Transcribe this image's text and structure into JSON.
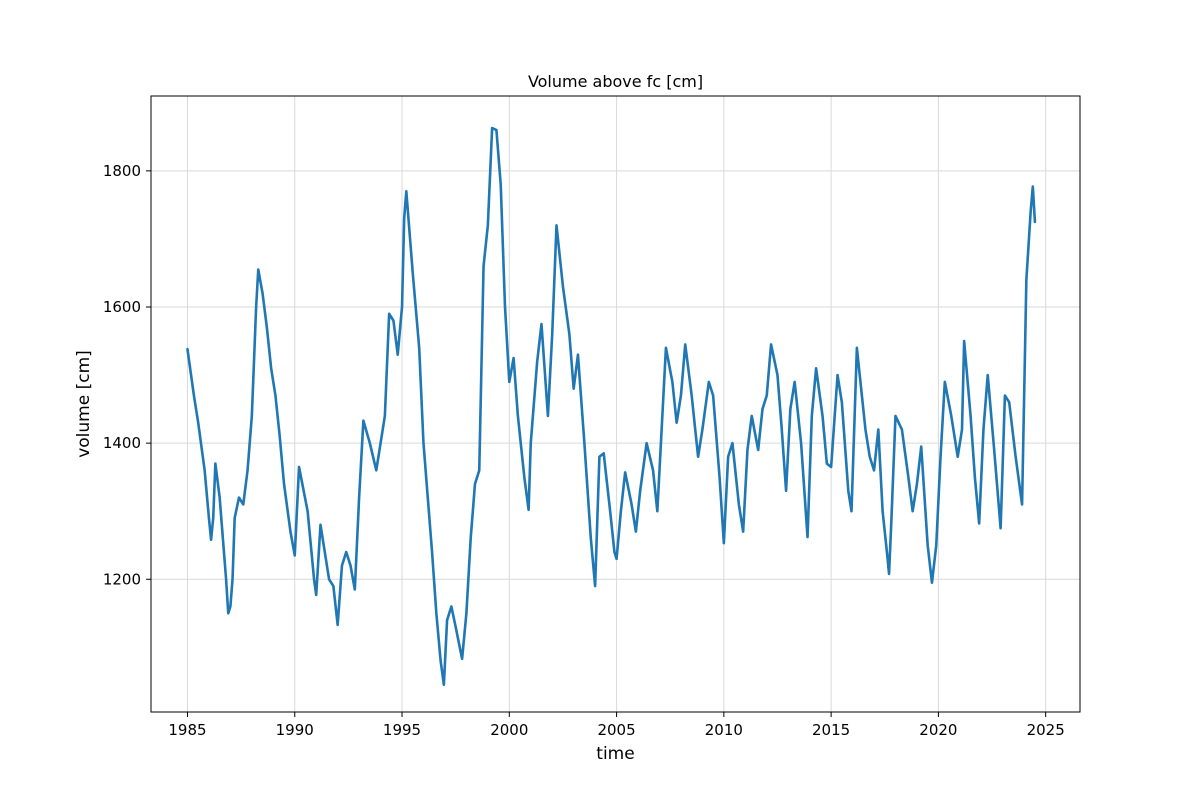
{
  "chart_data": {
    "type": "line",
    "title": "Volume above fc [cm]",
    "xlabel": "time",
    "ylabel": "volume [cm]",
    "xlim": [
      1983.3,
      2026.6
    ],
    "ylim": [
      1005,
      1910
    ],
    "x_ticks": [
      1985,
      1990,
      1995,
      2000,
      2005,
      2010,
      2015,
      2020,
      2025
    ],
    "y_ticks": [
      1200,
      1400,
      1600,
      1800
    ],
    "grid": true,
    "legend": "none",
    "colors": {
      "series": "#1f77b4",
      "grid": "#d9d9d9",
      "axes": "#000000"
    },
    "series": [
      {
        "name": "",
        "points": [
          [
            1985.0,
            1538
          ],
          [
            1985.3,
            1470
          ],
          [
            1985.5,
            1430
          ],
          [
            1985.8,
            1360
          ],
          [
            1986.0,
            1290
          ],
          [
            1986.1,
            1258
          ],
          [
            1986.2,
            1290
          ],
          [
            1986.3,
            1370
          ],
          [
            1986.5,
            1320
          ],
          [
            1986.8,
            1200
          ],
          [
            1986.9,
            1150
          ],
          [
            1987.0,
            1160
          ],
          [
            1987.1,
            1200
          ],
          [
            1987.2,
            1290
          ],
          [
            1987.4,
            1320
          ],
          [
            1987.6,
            1310
          ],
          [
            1987.8,
            1360
          ],
          [
            1988.0,
            1440
          ],
          [
            1988.2,
            1600
          ],
          [
            1988.3,
            1655
          ],
          [
            1988.5,
            1620
          ],
          [
            1988.7,
            1570
          ],
          [
            1988.9,
            1510
          ],
          [
            1989.1,
            1470
          ],
          [
            1989.3,
            1410
          ],
          [
            1989.5,
            1340
          ],
          [
            1989.8,
            1270
          ],
          [
            1990.0,
            1235
          ],
          [
            1990.2,
            1365
          ],
          [
            1990.6,
            1300
          ],
          [
            1990.9,
            1200
          ],
          [
            1991.0,
            1177
          ],
          [
            1991.2,
            1280
          ],
          [
            1991.4,
            1240
          ],
          [
            1991.6,
            1200
          ],
          [
            1991.8,
            1190
          ],
          [
            1992.0,
            1133
          ],
          [
            1992.2,
            1220
          ],
          [
            1992.4,
            1240
          ],
          [
            1992.6,
            1220
          ],
          [
            1992.8,
            1185
          ],
          [
            1993.0,
            1320
          ],
          [
            1993.2,
            1433
          ],
          [
            1993.5,
            1400
          ],
          [
            1993.8,
            1360
          ],
          [
            1994.0,
            1400
          ],
          [
            1994.2,
            1440
          ],
          [
            1994.4,
            1590
          ],
          [
            1994.6,
            1580
          ],
          [
            1994.8,
            1530
          ],
          [
            1995.0,
            1600
          ],
          [
            1995.1,
            1730
          ],
          [
            1995.2,
            1770
          ],
          [
            1995.5,
            1650
          ],
          [
            1995.8,
            1540
          ],
          [
            1996.0,
            1400
          ],
          [
            1996.2,
            1320
          ],
          [
            1996.4,
            1240
          ],
          [
            1996.6,
            1150
          ],
          [
            1996.8,
            1080
          ],
          [
            1996.95,
            1045
          ],
          [
            1997.1,
            1140
          ],
          [
            1997.3,
            1160
          ],
          [
            1997.5,
            1130
          ],
          [
            1997.8,
            1083
          ],
          [
            1998.0,
            1150
          ],
          [
            1998.2,
            1260
          ],
          [
            1998.4,
            1340
          ],
          [
            1998.6,
            1360
          ],
          [
            1998.8,
            1660
          ],
          [
            1999.0,
            1720
          ],
          [
            1999.2,
            1863
          ],
          [
            1999.4,
            1860
          ],
          [
            1999.6,
            1780
          ],
          [
            1999.8,
            1600
          ],
          [
            2000.0,
            1490
          ],
          [
            2000.2,
            1525
          ],
          [
            2000.4,
            1440
          ],
          [
            2000.7,
            1350
          ],
          [
            2000.9,
            1302
          ],
          [
            2001.0,
            1400
          ],
          [
            2001.3,
            1520
          ],
          [
            2001.5,
            1575
          ],
          [
            2001.8,
            1440
          ],
          [
            2002.0,
            1560
          ],
          [
            2002.2,
            1720
          ],
          [
            2002.5,
            1630
          ],
          [
            2002.8,
            1560
          ],
          [
            2003.0,
            1480
          ],
          [
            2003.2,
            1530
          ],
          [
            2003.5,
            1400
          ],
          [
            2003.8,
            1260
          ],
          [
            2004.0,
            1190
          ],
          [
            2004.2,
            1380
          ],
          [
            2004.4,
            1385
          ],
          [
            2004.7,
            1300
          ],
          [
            2004.9,
            1240
          ],
          [
            2005.0,
            1230
          ],
          [
            2005.2,
            1300
          ],
          [
            2005.4,
            1357
          ],
          [
            2005.7,
            1310
          ],
          [
            2005.9,
            1270
          ],
          [
            2006.1,
            1330
          ],
          [
            2006.4,
            1400
          ],
          [
            2006.7,
            1360
          ],
          [
            2006.9,
            1300
          ],
          [
            2007.1,
            1420
          ],
          [
            2007.3,
            1540
          ],
          [
            2007.6,
            1490
          ],
          [
            2007.8,
            1430
          ],
          [
            2008.0,
            1470
          ],
          [
            2008.2,
            1545
          ],
          [
            2008.5,
            1470
          ],
          [
            2008.8,
            1380
          ],
          [
            2009.0,
            1420
          ],
          [
            2009.3,
            1490
          ],
          [
            2009.5,
            1470
          ],
          [
            2009.8,
            1350
          ],
          [
            2010.0,
            1253
          ],
          [
            2010.2,
            1380
          ],
          [
            2010.4,
            1400
          ],
          [
            2010.7,
            1310
          ],
          [
            2010.9,
            1270
          ],
          [
            2011.1,
            1390
          ],
          [
            2011.3,
            1440
          ],
          [
            2011.6,
            1390
          ],
          [
            2011.8,
            1450
          ],
          [
            2012.0,
            1470
          ],
          [
            2012.2,
            1545
          ],
          [
            2012.5,
            1500
          ],
          [
            2012.7,
            1420
          ],
          [
            2012.9,
            1330
          ],
          [
            2013.1,
            1450
          ],
          [
            2013.3,
            1490
          ],
          [
            2013.6,
            1400
          ],
          [
            2013.9,
            1262
          ],
          [
            2014.1,
            1440
          ],
          [
            2014.3,
            1510
          ],
          [
            2014.6,
            1440
          ],
          [
            2014.8,
            1370
          ],
          [
            2015.0,
            1365
          ],
          [
            2015.3,
            1500
          ],
          [
            2015.5,
            1460
          ],
          [
            2015.8,
            1330
          ],
          [
            2015.95,
            1300
          ],
          [
            2016.2,
            1540
          ],
          [
            2016.4,
            1480
          ],
          [
            2016.6,
            1420
          ],
          [
            2016.8,
            1380
          ],
          [
            2017.0,
            1360
          ],
          [
            2017.2,
            1420
          ],
          [
            2017.4,
            1300
          ],
          [
            2017.6,
            1240
          ],
          [
            2017.7,
            1208
          ],
          [
            2017.8,
            1280
          ],
          [
            2018.0,
            1440
          ],
          [
            2018.3,
            1420
          ],
          [
            2018.6,
            1350
          ],
          [
            2018.8,
            1300
          ],
          [
            2019.0,
            1340
          ],
          [
            2019.2,
            1395
          ],
          [
            2019.5,
            1250
          ],
          [
            2019.7,
            1195
          ],
          [
            2019.9,
            1250
          ],
          [
            2020.1,
            1380
          ],
          [
            2020.3,
            1490
          ],
          [
            2020.6,
            1440
          ],
          [
            2020.9,
            1380
          ],
          [
            2021.1,
            1420
          ],
          [
            2021.2,
            1550
          ],
          [
            2021.5,
            1440
          ],
          [
            2021.7,
            1350
          ],
          [
            2021.9,
            1282
          ],
          [
            2022.1,
            1420
          ],
          [
            2022.3,
            1500
          ],
          [
            2022.6,
            1390
          ],
          [
            2022.9,
            1275
          ],
          [
            2023.1,
            1470
          ],
          [
            2023.3,
            1460
          ],
          [
            2023.6,
            1380
          ],
          [
            2023.9,
            1310
          ],
          [
            2024.1,
            1640
          ],
          [
            2024.3,
            1740
          ],
          [
            2024.4,
            1777
          ],
          [
            2024.5,
            1725
          ]
        ]
      }
    ]
  }
}
